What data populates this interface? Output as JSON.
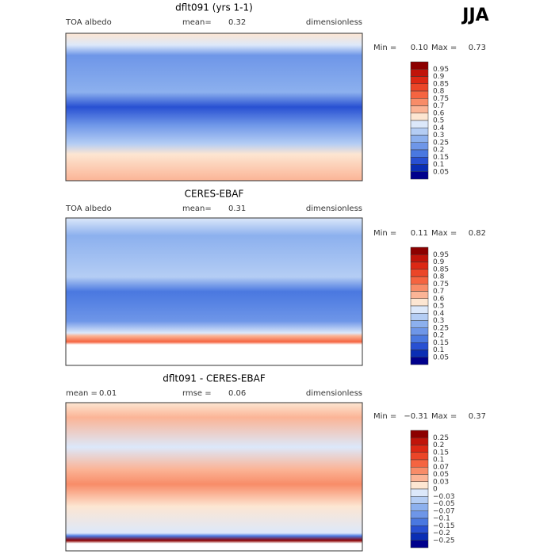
{
  "season": "JJA",
  "panels": [
    {
      "title": "dflt091 (yrs 1-1)",
      "variable": "TOA albedo",
      "stat_label": "mean=",
      "stat_value": "0.32",
      "units": "dimensionless",
      "min_label": "Min =",
      "min": "0.10",
      "max_label": "Max =",
      "max": "0.73",
      "colorbar": {
        "labels": [
          "0.95",
          "0.9",
          "0.85",
          "0.8",
          "0.75",
          "0.7",
          "0.6",
          "0.5",
          "0.4",
          "0.3",
          "0.25",
          "0.2",
          "0.15",
          "0.1",
          "0.05"
        ],
        "colors": [
          "#8c0000",
          "#c0140a",
          "#dc2814",
          "#eb4628",
          "#f56440",
          "#f88c68",
          "#fbb496",
          "#fde6d2",
          "#dce8fa",
          "#b4cdf4",
          "#8cb0ee",
          "#6e96e8",
          "#4a78e0",
          "#2850d2",
          "#0a2eb4",
          "#00008c"
        ]
      }
    },
    {
      "title": "CERES-EBAF",
      "variable": "TOA albedo",
      "stat_label": "mean=",
      "stat_value": "0.31",
      "units": "dimensionless",
      "min_label": "Min =",
      "min": "0.11",
      "max_label": "Max =",
      "max": "0.82",
      "colorbar": {
        "labels": [
          "0.95",
          "0.9",
          "0.85",
          "0.8",
          "0.75",
          "0.7",
          "0.6",
          "0.5",
          "0.4",
          "0.3",
          "0.25",
          "0.2",
          "0.15",
          "0.1",
          "0.05"
        ],
        "colors": [
          "#8c0000",
          "#c0140a",
          "#dc2814",
          "#eb4628",
          "#f56440",
          "#f88c68",
          "#fbb496",
          "#fde6d2",
          "#dce8fa",
          "#b4cdf4",
          "#8cb0ee",
          "#6e96e8",
          "#4a78e0",
          "#2850d2",
          "#0a2eb4",
          "#00008c"
        ]
      }
    },
    {
      "title": "dflt091 - CERES-EBAF",
      "mean_label": "mean =",
      "mean": "0.01",
      "stat_label": "rmse =",
      "stat_value": "0.06",
      "units": "dimensionless",
      "min_label": "Min =",
      "min": "−0.31",
      "max_label": "Max =",
      "max": "0.37",
      "colorbar": {
        "labels": [
          "0.25",
          "0.2",
          "0.15",
          "0.1",
          "0.07",
          "0.05",
          "0.03",
          "0",
          "−0.03",
          "−0.05",
          "−0.07",
          "−0.1",
          "−0.15",
          "−0.2",
          "−0.25"
        ],
        "colors": [
          "#8c0000",
          "#c0140a",
          "#dc2814",
          "#eb4628",
          "#f56440",
          "#f88c68",
          "#fbb496",
          "#fde6d2",
          "#dce8fa",
          "#b4cdf4",
          "#8cb0ee",
          "#6e96e8",
          "#4a78e0",
          "#2850d2",
          "#0a2eb4",
          "#00008c"
        ]
      }
    }
  ]
}
